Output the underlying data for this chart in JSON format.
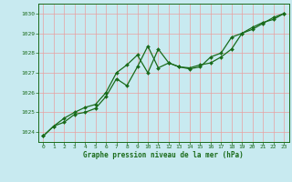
{
  "title": "Graphe pression niveau de la mer (hPa)",
  "background_color": "#c8eaf0",
  "line_color": "#1a6b1a",
  "marker_color": "#1a6b1a",
  "ylim": [
    1023.5,
    1030.5
  ],
  "xlim": [
    -0.5,
    23.5
  ],
  "yticks": [
    1024,
    1025,
    1026,
    1027,
    1028,
    1029,
    1030
  ],
  "xticks": [
    0,
    1,
    2,
    3,
    4,
    5,
    6,
    7,
    8,
    9,
    10,
    11,
    12,
    13,
    14,
    15,
    16,
    17,
    18,
    19,
    20,
    21,
    22,
    23
  ],
  "series1_x": [
    0,
    1,
    2,
    3,
    4,
    5,
    6,
    7,
    8,
    9,
    10,
    11,
    12,
    13,
    14,
    15,
    16,
    17,
    18,
    19,
    20,
    21,
    22,
    23
  ],
  "series1_y": [
    1023.8,
    1024.3,
    1024.5,
    1024.9,
    1025.0,
    1025.2,
    1025.8,
    1026.7,
    1026.35,
    1027.3,
    1028.35,
    1027.25,
    1027.5,
    1027.3,
    1027.25,
    1027.4,
    1027.5,
    1027.8,
    1028.2,
    1029.0,
    1029.3,
    1029.55,
    1029.7,
    1030.0
  ],
  "series2_x": [
    0,
    1,
    2,
    3,
    4,
    5,
    6,
    7,
    8,
    9,
    10,
    11,
    12,
    13,
    14,
    15,
    16,
    17,
    18,
    19,
    20,
    21,
    22,
    23
  ],
  "series2_y": [
    1023.8,
    1024.3,
    1024.7,
    1025.0,
    1025.25,
    1025.4,
    1026.0,
    1027.0,
    1027.4,
    1027.9,
    1027.0,
    1028.2,
    1027.5,
    1027.3,
    1027.2,
    1027.3,
    1027.8,
    1028.0,
    1028.8,
    1029.0,
    1029.2,
    1029.5,
    1029.8,
    1030.0
  ]
}
